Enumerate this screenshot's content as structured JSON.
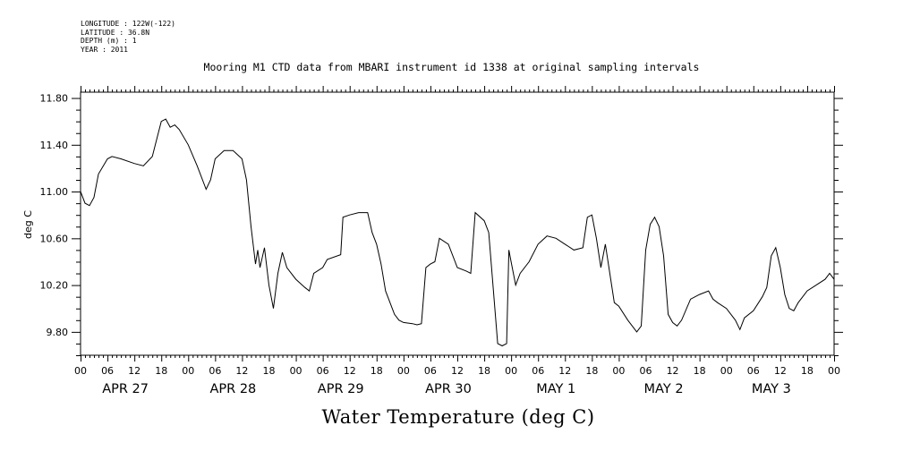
{
  "header": {
    "longitude": "LONGITUDE : 122W(-122)",
    "latitude": "LATITUDE : 36.8N",
    "depth": "DEPTH (m) : 1",
    "year": "YEAR : 2011"
  },
  "chart_data": {
    "type": "line",
    "title": "Mooring M1 CTD data from MBARI instrument id 1338 at original sampling intervals",
    "xlabel": "Water Temperature (deg C)",
    "ylabel": "deg C",
    "ylim": [
      9.6,
      11.85
    ],
    "xlim_hours": [
      0,
      168
    ],
    "y_ticks": [
      "11.80",
      "11.40",
      "11.00",
      "10.60",
      "10.20",
      "9.80"
    ],
    "y_tick_values": [
      11.8,
      11.4,
      11.0,
      10.6,
      10.2,
      9.8
    ],
    "hour_labels": [
      "00",
      "06",
      "12",
      "18",
      "00",
      "06",
      "12",
      "18",
      "00",
      "06",
      "12",
      "18",
      "00",
      "06",
      "12",
      "18",
      "00",
      "06",
      "12",
      "18",
      "00",
      "06",
      "12",
      "18",
      "00",
      "06",
      "12",
      "18",
      "00"
    ],
    "day_labels": [
      "APR 27",
      "APR 28",
      "APR 29",
      "APR 30",
      "MAY  1",
      "MAY  2",
      "MAY  3"
    ],
    "grid": false,
    "series": [
      {
        "points": [
          [
            0,
            11.0
          ],
          [
            1,
            10.9
          ],
          [
            2,
            10.88
          ],
          [
            3,
            10.95
          ],
          [
            4,
            11.15
          ],
          [
            6,
            11.28
          ],
          [
            7,
            11.3
          ],
          [
            9,
            11.28
          ],
          [
            12,
            11.24
          ],
          [
            14,
            11.22
          ],
          [
            16,
            11.3
          ],
          [
            17,
            11.45
          ],
          [
            18,
            11.6
          ],
          [
            19,
            11.62
          ],
          [
            20,
            11.55
          ],
          [
            21,
            11.57
          ],
          [
            22,
            11.53
          ],
          [
            24,
            11.4
          ],
          [
            26,
            11.22
          ],
          [
            28,
            11.02
          ],
          [
            29,
            11.1
          ],
          [
            30,
            11.28
          ],
          [
            32,
            11.35
          ],
          [
            34,
            11.35
          ],
          [
            36,
            11.28
          ],
          [
            37,
            11.1
          ],
          [
            38,
            10.7
          ],
          [
            39,
            10.38
          ],
          [
            39.5,
            10.5
          ],
          [
            40,
            10.35
          ],
          [
            41,
            10.52
          ],
          [
            42,
            10.2
          ],
          [
            43,
            10.0
          ],
          [
            44,
            10.3
          ],
          [
            45,
            10.48
          ],
          [
            46,
            10.35
          ],
          [
            48,
            10.25
          ],
          [
            50,
            10.18
          ],
          [
            51,
            10.15
          ],
          [
            52,
            10.3
          ],
          [
            54,
            10.35
          ],
          [
            55,
            10.42
          ],
          [
            58,
            10.46
          ],
          [
            58.5,
            10.78
          ],
          [
            60,
            10.8
          ],
          [
            62,
            10.82
          ],
          [
            64,
            10.82
          ],
          [
            65,
            10.65
          ],
          [
            66,
            10.55
          ],
          [
            67,
            10.38
          ],
          [
            68,
            10.15
          ],
          [
            70,
            9.95
          ],
          [
            71,
            9.9
          ],
          [
            72,
            9.88
          ],
          [
            74,
            9.87
          ],
          [
            75,
            9.86
          ],
          [
            76,
            9.87
          ],
          [
            77,
            10.35
          ],
          [
            78,
            10.38
          ],
          [
            79,
            10.4
          ],
          [
            80,
            10.6
          ],
          [
            82,
            10.55
          ],
          [
            84,
            10.35
          ],
          [
            86,
            10.32
          ],
          [
            87,
            10.3
          ],
          [
            88,
            10.82
          ],
          [
            90,
            10.75
          ],
          [
            91,
            10.65
          ],
          [
            93,
            9.7
          ],
          [
            94,
            9.68
          ],
          [
            95,
            9.7
          ],
          [
            95.5,
            10.5
          ],
          [
            96,
            10.4
          ],
          [
            97,
            10.2
          ],
          [
            98,
            10.3
          ],
          [
            100,
            10.4
          ],
          [
            102,
            10.55
          ],
          [
            104,
            10.62
          ],
          [
            106,
            10.6
          ],
          [
            108,
            10.55
          ],
          [
            110,
            10.5
          ],
          [
            112,
            10.52
          ],
          [
            113,
            10.78
          ],
          [
            114,
            10.8
          ],
          [
            115,
            10.6
          ],
          [
            116,
            10.35
          ],
          [
            117,
            10.55
          ],
          [
            118,
            10.3
          ],
          [
            119,
            10.05
          ],
          [
            120,
            10.02
          ],
          [
            122,
            9.9
          ],
          [
            124,
            9.8
          ],
          [
            125,
            9.85
          ],
          [
            126,
            10.5
          ],
          [
            127,
            10.72
          ],
          [
            128,
            10.78
          ],
          [
            129,
            10.7
          ],
          [
            130,
            10.45
          ],
          [
            131,
            9.95
          ],
          [
            132,
            9.88
          ],
          [
            133,
            9.85
          ],
          [
            134,
            9.9
          ],
          [
            136,
            10.08
          ],
          [
            138,
            10.12
          ],
          [
            140,
            10.15
          ],
          [
            141,
            10.08
          ],
          [
            142,
            10.05
          ],
          [
            144,
            10.0
          ],
          [
            146,
            9.9
          ],
          [
            147,
            9.82
          ],
          [
            148,
            9.92
          ],
          [
            150,
            9.98
          ],
          [
            152,
            10.1
          ],
          [
            153,
            10.18
          ],
          [
            154,
            10.45
          ],
          [
            155,
            10.52
          ],
          [
            156,
            10.35
          ],
          [
            157,
            10.12
          ],
          [
            158,
            10.0
          ],
          [
            159,
            9.98
          ],
          [
            160,
            10.05
          ],
          [
            161,
            10.1
          ],
          [
            162,
            10.15
          ],
          [
            164,
            10.2
          ],
          [
            166,
            10.25
          ],
          [
            167,
            10.3
          ],
          [
            168,
            10.25
          ]
        ]
      }
    ]
  }
}
